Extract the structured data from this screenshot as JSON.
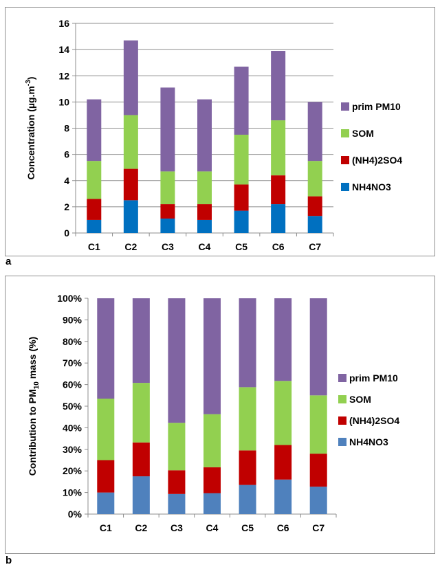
{
  "panel_labels": {
    "a": "a",
    "b": "b"
  },
  "chart_data": [
    {
      "type": "bar",
      "stacked": true,
      "categories": [
        "C1",
        "C2",
        "C3",
        "C4",
        "C5",
        "C6",
        "C7"
      ],
      "ylabel_parts": {
        "main": "Concentration (µg.m",
        "sup": "-3",
        "tail": ")"
      },
      "ylim": [
        0,
        16
      ],
      "yticks": [
        0,
        2,
        4,
        6,
        8,
        10,
        12,
        14,
        16
      ],
      "ytick_labels": [
        "0",
        "2",
        "4",
        "6",
        "8",
        "10",
        "12",
        "14",
        "16"
      ],
      "grid": true,
      "legend_position": "right",
      "series": [
        {
          "name": "NH4NO3",
          "color": "#0070c0",
          "values": [
            1.0,
            2.5,
            1.1,
            1.0,
            1.7,
            2.2,
            1.3
          ]
        },
        {
          "name": "(NH4)2SO4",
          "color": "#c00000",
          "values": [
            1.6,
            2.4,
            1.1,
            1.2,
            2.0,
            2.2,
            1.5
          ]
        },
        {
          "name": "SOM",
          "color": "#92d050",
          "values": [
            2.9,
            4.1,
            2.5,
            2.5,
            3.8,
            4.2,
            2.7
          ]
        },
        {
          "name": "prim PM10",
          "color": "#8064a2",
          "values": [
            4.7,
            5.7,
            6.4,
            5.5,
            5.2,
            5.3,
            4.5
          ]
        }
      ]
    },
    {
      "type": "bar",
      "stacked": true,
      "percent": true,
      "categories": [
        "C1",
        "C2",
        "C3",
        "C4",
        "C5",
        "C6",
        "C7"
      ],
      "ylabel_parts": {
        "main": "Contribution to PM",
        "sub": "10",
        "tail": " mass (%)"
      },
      "ylim": [
        0,
        100
      ],
      "yticks": [
        0,
        10,
        20,
        30,
        40,
        50,
        60,
        70,
        80,
        90,
        100
      ],
      "ytick_labels": [
        "0%",
        "10%",
        "20%",
        "30%",
        "40%",
        "50%",
        "60%",
        "70%",
        "80%",
        "90%",
        "100%"
      ],
      "grid": false,
      "legend_position": "right",
      "series": [
        {
          "name": "NH4NO3",
          "color": "#4f81bd",
          "values": [
            10,
            17.5,
            9.3,
            9.7,
            13.5,
            16,
            12.7
          ]
        },
        {
          "name": "(NH4)2SO4",
          "color": "#c00000",
          "values": [
            15,
            15.7,
            11,
            12,
            16,
            16,
            15.3
          ]
        },
        {
          "name": "SOM",
          "color": "#92d050",
          "values": [
            28.5,
            27.6,
            22,
            24.6,
            29.3,
            29.7,
            27
          ]
        },
        {
          "name": "prim PM10",
          "color": "#8064a2",
          "values": [
            46.5,
            39.2,
            57.7,
            53.7,
            41.2,
            38.3,
            45
          ]
        }
      ]
    }
  ]
}
